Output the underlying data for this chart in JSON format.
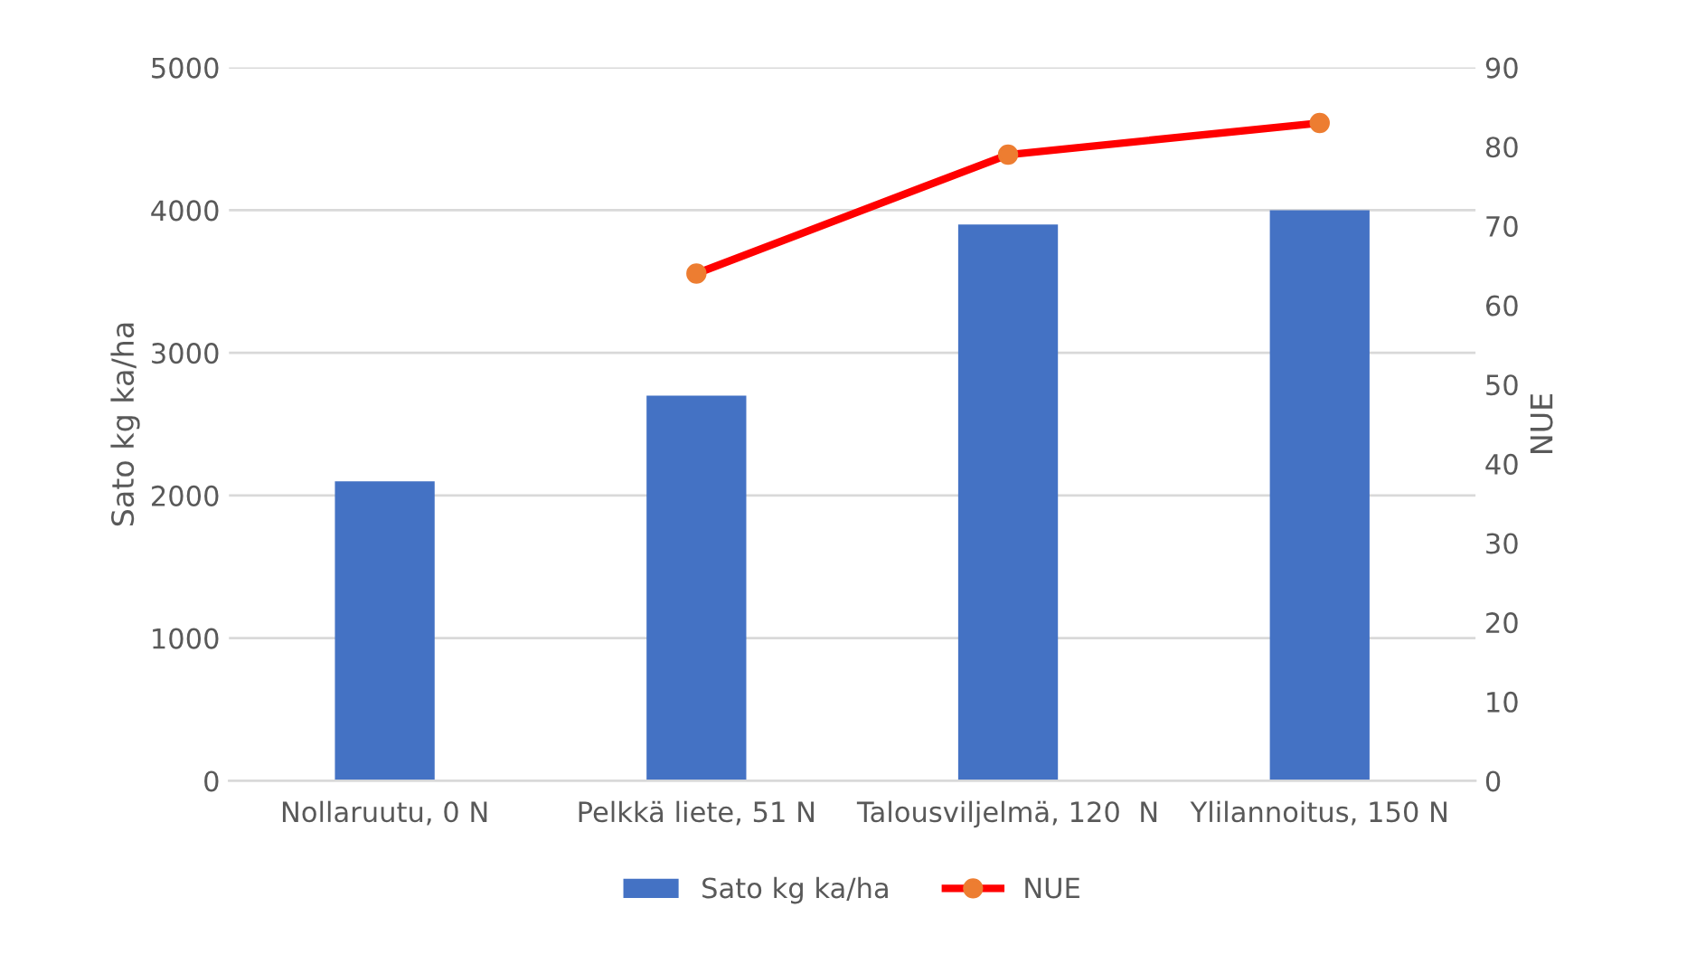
{
  "chart_data": {
    "type": "bar",
    "categories": [
      "Nollaruutu, 0 N",
      "Pelkkä liete, 51 N",
      "Talousviljelmä, 120  N",
      "Ylilannoitus, 150 N"
    ],
    "ylabel": "Sato kg ka/ha",
    "y2label": "NUE",
    "series": [
      {
        "name": "Sato kg ka/ha",
        "color": "#4472c4",
        "values": [
          2100,
          2700,
          3900,
          4000
        ]
      },
      {
        "name": "NUE",
        "type": "line",
        "axis": "y2",
        "color": "#ff0000",
        "colors": [
          null,
          "#ed7d31",
          "#ed7d31",
          "#ed7d31"
        ],
        "marker": "circle",
        "values": [
          null,
          64,
          79,
          83
        ]
      }
    ],
    "ylim": [
      0,
      5000
    ],
    "yticks": [
      0,
      1000,
      2000,
      3000,
      4000,
      5000
    ],
    "y2lim": [
      0,
      90
    ],
    "y2ticks": [
      0,
      10,
      20,
      30,
      40,
      50,
      60,
      70,
      80,
      90
    ],
    "grid": "y",
    "legend": "bottom"
  }
}
